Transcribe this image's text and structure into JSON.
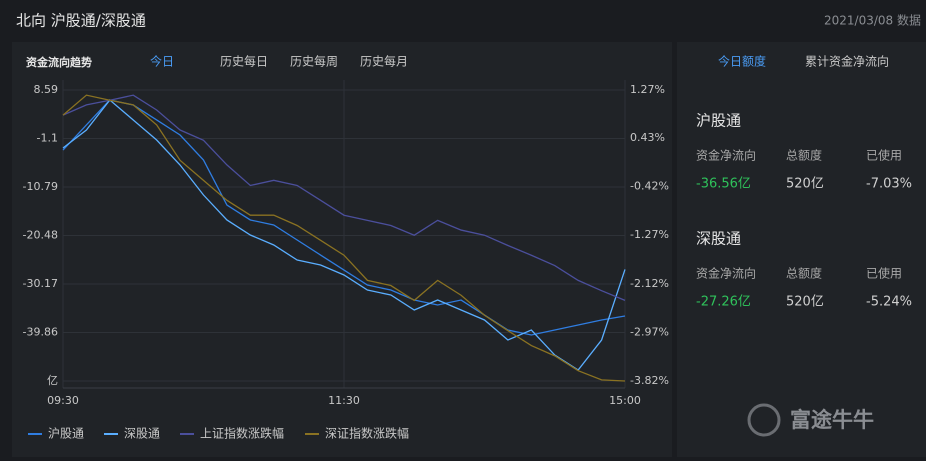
{
  "header": {
    "title": "北向 沪股通/深股通",
    "date": "2021/03/08 数据"
  },
  "tabs": {
    "label": "资金流向趋势",
    "items": [
      "今日",
      "历史每日",
      "历史每周",
      "历史每月"
    ]
  },
  "chart_data": {
    "type": "line",
    "x": [
      0,
      10,
      20,
      30,
      40,
      50,
      60,
      70,
      80,
      90,
      100,
      110,
      120,
      130,
      140,
      150,
      160,
      170,
      180,
      190,
      200,
      210,
      220,
      230,
      240
    ],
    "xlim": [
      0,
      240
    ],
    "xticks": [
      {
        "value": 0,
        "label": "09:30"
      },
      {
        "value": 120,
        "label": "11:30"
      },
      {
        "value": 240,
        "label": "15:00"
      }
    ],
    "ylim": [
      -49.55,
      8.59
    ],
    "yticks": [
      8.59,
      -1.1,
      -10.79,
      -20.48,
      -30.17,
      -39.86,
      {
        "value": -49.55,
        "label": "亿"
      }
    ],
    "y2lim": [
      -3.82,
      1.27
    ],
    "y2ticks": [
      {
        "value": 1.27,
        "label": "1.27%"
      },
      {
        "value": 0.43,
        "label": "0.43%"
      },
      {
        "value": -0.42,
        "label": "-0.42%"
      },
      {
        "value": -1.27,
        "label": "-1.27%"
      },
      {
        "value": -2.12,
        "label": "-2.12%"
      },
      {
        "value": -2.97,
        "label": "-2.97%"
      },
      {
        "value": -3.82,
        "label": "-3.82%"
      }
    ],
    "grid": true,
    "legend": "bottom",
    "series": [
      {
        "name": "沪股通",
        "color": "#2f7de1",
        "values": [
          -3.4,
          1.6,
          6.59,
          5.59,
          2.6,
          -0.4,
          -5.4,
          -14.39,
          -17.38,
          -18.38,
          -21.38,
          -24.38,
          -27.38,
          -30.37,
          -31.37,
          -33.37,
          -34.37,
          -33.37,
          -36.37,
          -39.37,
          -40.36,
          -39.37,
          -38.36,
          -37.36,
          -36.56
        ]
      },
      {
        "name": "深股通",
        "color": "#5aaeff",
        "values": [
          -3.0,
          0.6,
          6.59,
          2.6,
          -1.4,
          -6.4,
          -12.39,
          -17.38,
          -20.38,
          -22.38,
          -25.38,
          -26.37,
          -28.37,
          -31.37,
          -32.37,
          -35.37,
          -33.37,
          -35.37,
          -37.36,
          -41.36,
          -39.37,
          -44.36,
          -47.36,
          -41.36,
          -27.26
        ]
      },
      {
        "name": "上证指数涨跌幅",
        "color": "#4b4f9c",
        "axis": "y2",
        "values": [
          0.83,
          1.01,
          1.09,
          1.18,
          0.92,
          0.57,
          0.39,
          -0.04,
          -0.4,
          -0.31,
          -0.4,
          -0.66,
          -0.92,
          -1.01,
          -1.1,
          -1.27,
          -1.01,
          -1.18,
          -1.27,
          -1.45,
          -1.62,
          -1.8,
          -2.06,
          -2.24,
          -2.41
        ]
      },
      {
        "name": "深证指数涨跌幅",
        "color": "#8a7222",
        "axis": "y2",
        "values": [
          0.83,
          1.18,
          1.09,
          1.01,
          0.66,
          0.04,
          -0.31,
          -0.66,
          -0.92,
          -0.92,
          -1.1,
          -1.36,
          -1.62,
          -2.06,
          -2.15,
          -2.41,
          -2.06,
          -2.32,
          -2.67,
          -2.94,
          -3.2,
          -3.38,
          -3.64,
          -3.8,
          -3.82
        ]
      }
    ]
  },
  "quota": {
    "tabs": [
      "今日额度",
      "累计资金净流向"
    ],
    "sections": [
      {
        "title": "沪股通",
        "columns": [
          "资金净流向",
          "总额度",
          "已使用"
        ],
        "values": [
          "-36.56亿",
          "520亿",
          "-7.03%"
        ]
      },
      {
        "title": "深股通",
        "columns": [
          "资金净流向",
          "总额度",
          "已使用"
        ],
        "values": [
          "-27.26亿",
          "520亿",
          "-5.24%"
        ]
      }
    ]
  },
  "watermark": "富途牛牛"
}
